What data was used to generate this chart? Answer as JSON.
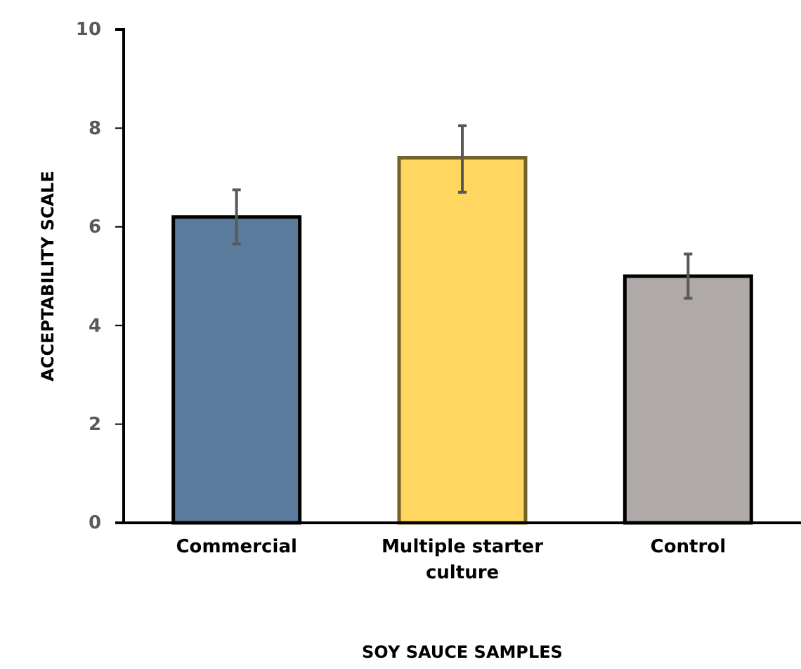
{
  "chart_data": {
    "type": "bar",
    "xlabel": "SOY SAUCE SAMPLES",
    "ylabel": "ACCEPTABILITY SCALE",
    "categories": [
      "Commercial",
      "Multiple starter culture",
      "Control"
    ],
    "values": [
      6.2,
      7.4,
      5.0
    ],
    "errors": [
      0.55,
      [
        6.7,
        8.05
      ],
      0.45
    ],
    "colors": [
      "#5a7b9c",
      "#fed660",
      "#afa9a8"
    ],
    "ylim": [
      0,
      10
    ],
    "yticks": [
      0,
      2,
      4,
      6,
      8,
      10
    ],
    "grid": false
  }
}
